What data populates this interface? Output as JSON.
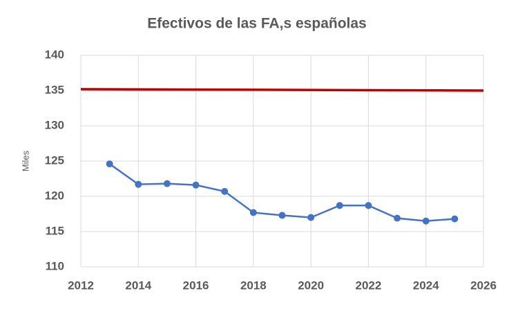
{
  "chart_data": {
    "type": "line",
    "title": "Efectivos de las FA,s españolas",
    "y_label": "Miles",
    "xlim": [
      2012,
      2026
    ],
    "xticks": [
      2012,
      2014,
      2016,
      2018,
      2020,
      2022,
      2024,
      2026
    ],
    "ylim": [
      110,
      140
    ],
    "yticks": [
      110,
      115,
      120,
      125,
      130,
      135,
      140
    ],
    "grid": true,
    "series": [
      {
        "color": "#c00000",
        "markers": false,
        "x": [
          2012,
          2026
        ],
        "values": [
          135.2,
          135.0
        ]
      },
      {
        "color": "#4472c4",
        "markers": true,
        "x": [
          2013,
          2014,
          2015,
          2016,
          2017,
          2018,
          2019,
          2020,
          2021,
          2022,
          2023,
          2024,
          2025
        ],
        "values": [
          124.6,
          121.7,
          121.8,
          121.6,
          120.7,
          117.7,
          117.3,
          117.0,
          118.7,
          118.7,
          116.9,
          116.5,
          116.8
        ]
      }
    ]
  }
}
